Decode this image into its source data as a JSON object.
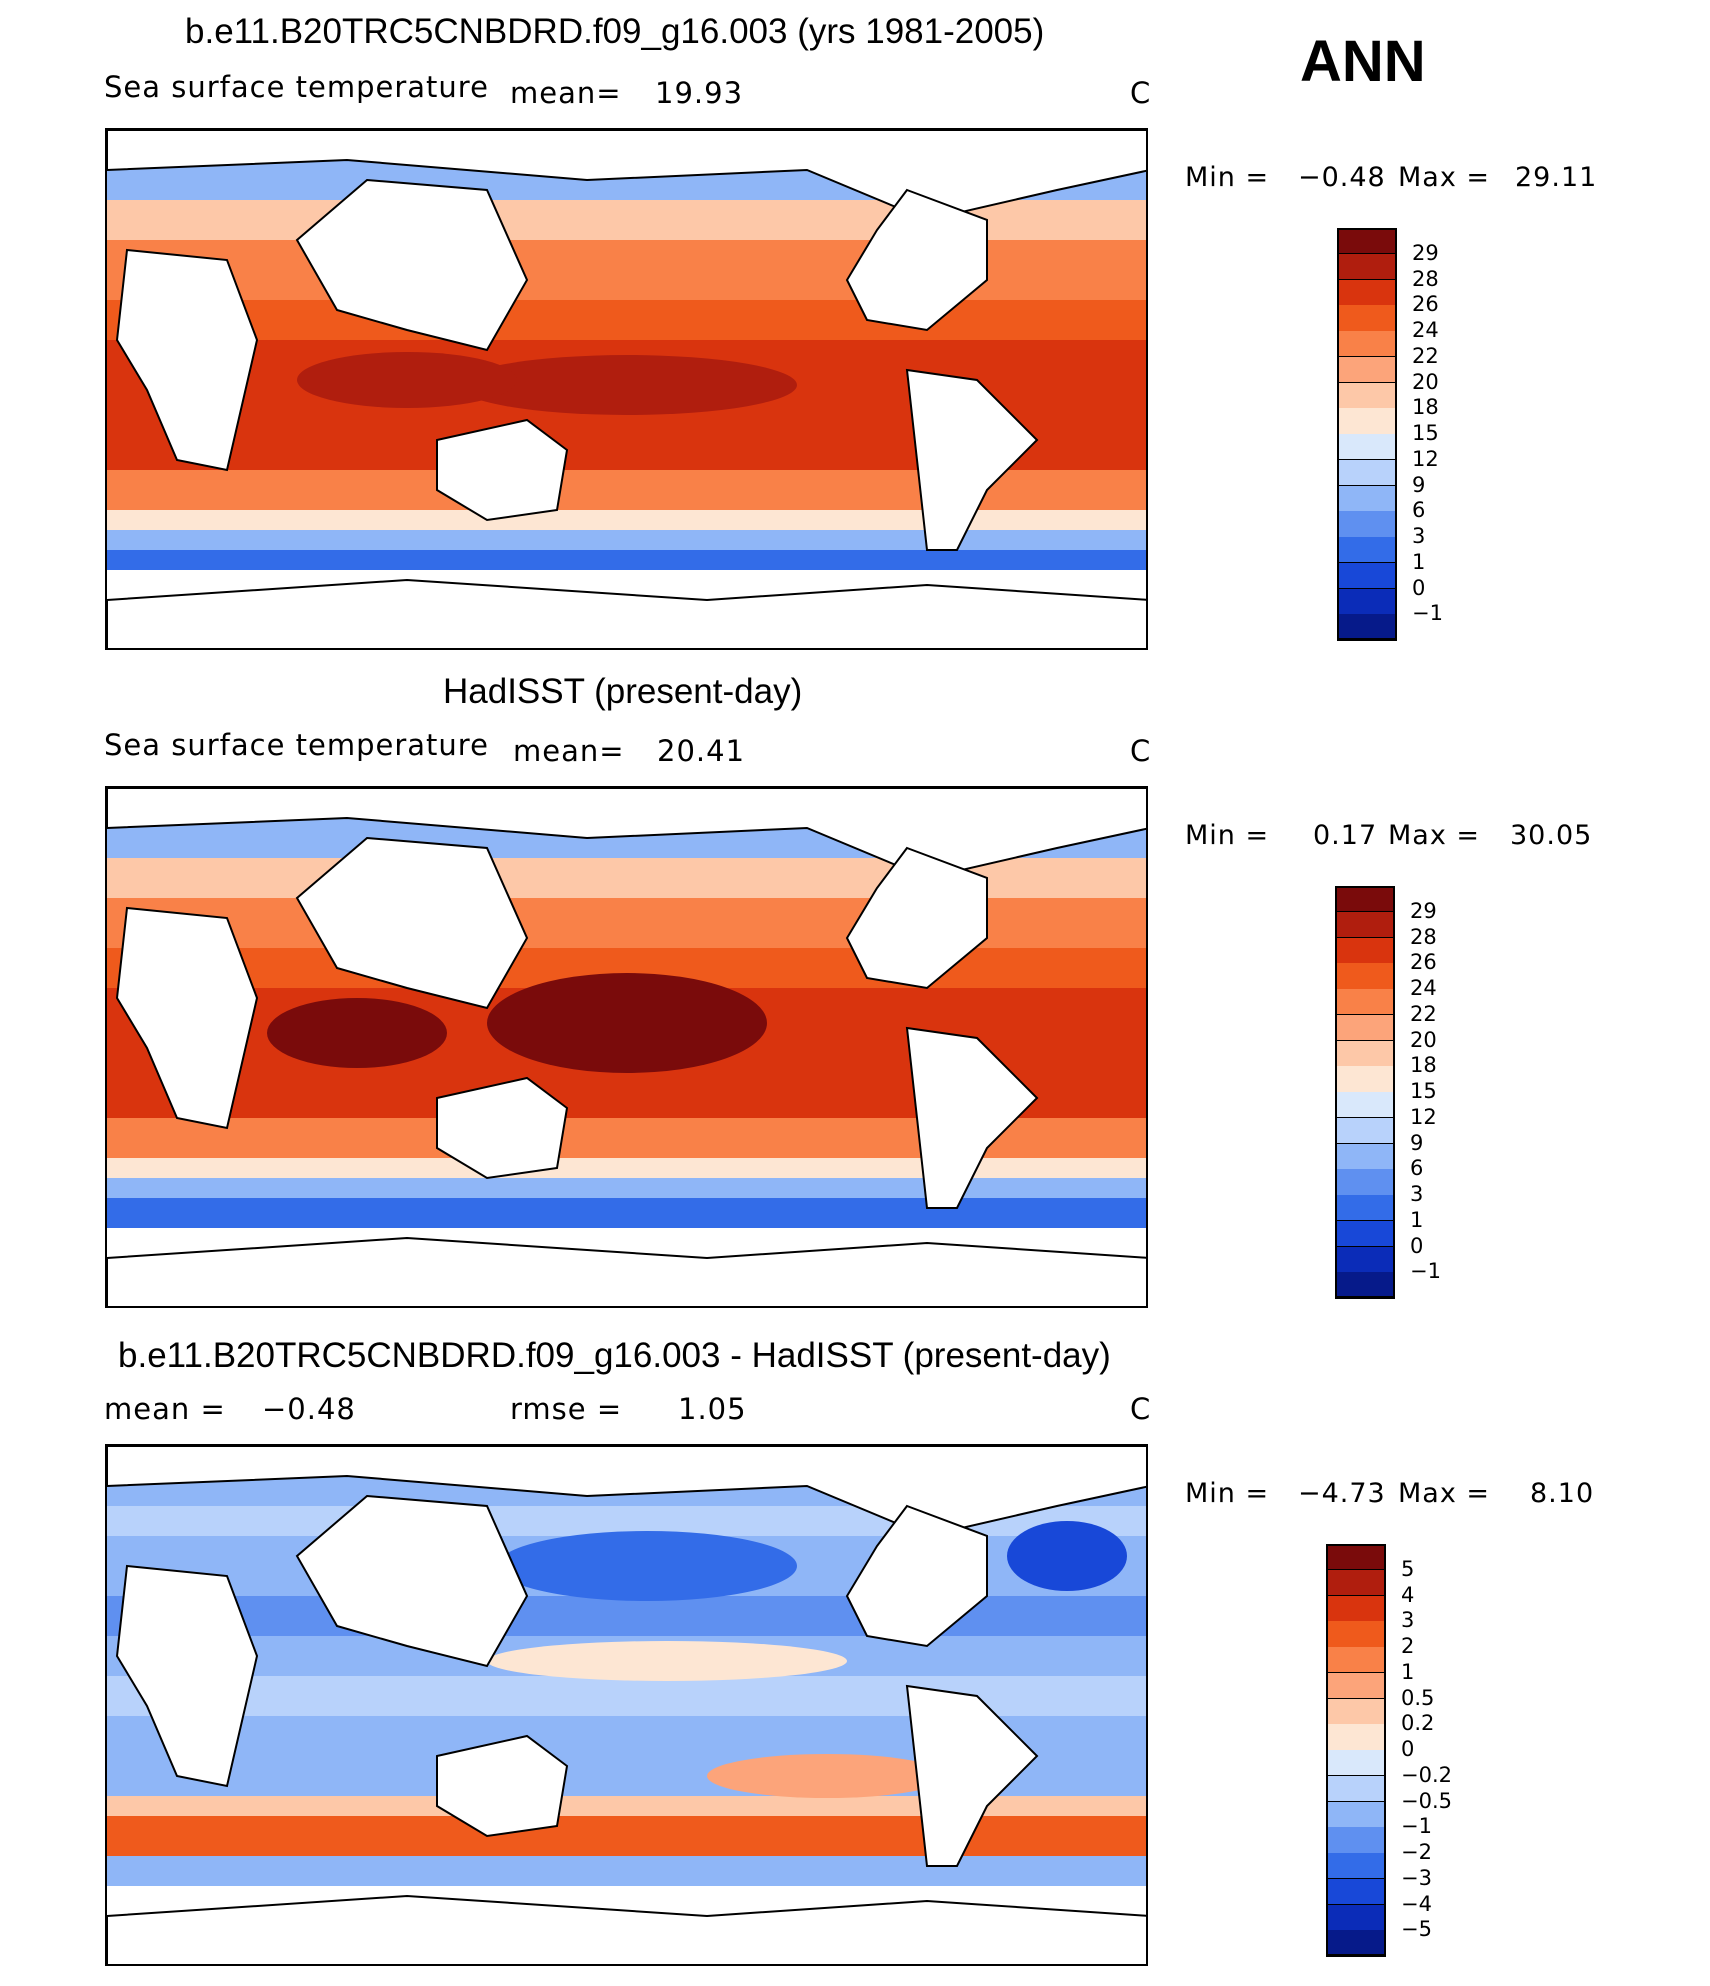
{
  "corner_label": "ANN",
  "panels": [
    {
      "title": "b.e11.B20TRC5CNBDRD.f09_g16.003 (yrs 1981-2005)",
      "left_label": "Sea surface temperature",
      "stat_label": "mean=",
      "stat_value": "19.93",
      "units": "C",
      "min_label": "Min =",
      "min_value": "−0.48",
      "max_label": "Max =",
      "max_value": "29.11",
      "colorbar": {
        "ticks": [
          "29",
          "28",
          "26",
          "24",
          "22",
          "20",
          "18",
          "15",
          "12",
          "9",
          "6",
          "3",
          "1",
          "0",
          "−1"
        ],
        "colors": [
          "#7a0b0b",
          "#b01e0e",
          "#d9340e",
          "#ef5a1c",
          "#f98148",
          "#fca47a",
          "#fdc8a8",
          "#fde6d3",
          "#d9e8fb",
          "#b8d2fb",
          "#8fb6f7",
          "#5f90f0",
          "#336ce8",
          "#1848d8",
          "#0b2cb8",
          "#061a8a"
        ]
      },
      "map_field": "model-sst"
    },
    {
      "title": "HadISST (present-day)",
      "left_label": "Sea surface temperature",
      "stat_label": "mean=",
      "stat_value": "20.41",
      "units": "C",
      "min_label": "Min =",
      "min_value": "0.17",
      "max_label": "Max =",
      "max_value": "30.05",
      "colorbar": {
        "ticks": [
          "29",
          "28",
          "26",
          "24",
          "22",
          "20",
          "18",
          "15",
          "12",
          "9",
          "6",
          "3",
          "1",
          "0",
          "−1"
        ],
        "colors": [
          "#7a0b0b",
          "#b01e0e",
          "#d9340e",
          "#ef5a1c",
          "#f98148",
          "#fca47a",
          "#fdc8a8",
          "#fde6d3",
          "#d9e8fb",
          "#b8d2fb",
          "#8fb6f7",
          "#5f90f0",
          "#336ce8",
          "#1848d8",
          "#0b2cb8",
          "#061a8a"
        ]
      },
      "map_field": "observed-sst"
    },
    {
      "title": "b.e11.B20TRC5CNBDRD.f09_g16.003 - HadISST (present-day)",
      "left_label": "mean =",
      "left_value": "−0.48",
      "stat_label": "rmse =",
      "stat_value": "1.05",
      "units": "C",
      "min_label": "Min =",
      "min_value": "−4.73",
      "max_label": "Max =",
      "max_value": "8.10",
      "colorbar": {
        "ticks": [
          "5",
          "4",
          "3",
          "2",
          "1",
          "0.5",
          "0.2",
          "0",
          "−0.2",
          "−0.5",
          "−1",
          "−2",
          "−3",
          "−4",
          "−5"
        ],
        "colors": [
          "#7a0b0b",
          "#b01e0e",
          "#d9340e",
          "#ef5a1c",
          "#f98148",
          "#fca47a",
          "#fdc8a8",
          "#fde6d3",
          "#d9e8fb",
          "#b8d2fb",
          "#8fb6f7",
          "#5f90f0",
          "#336ce8",
          "#1848d8",
          "#0b2cb8",
          "#061a8a"
        ]
      },
      "map_field": "difference"
    }
  ]
}
